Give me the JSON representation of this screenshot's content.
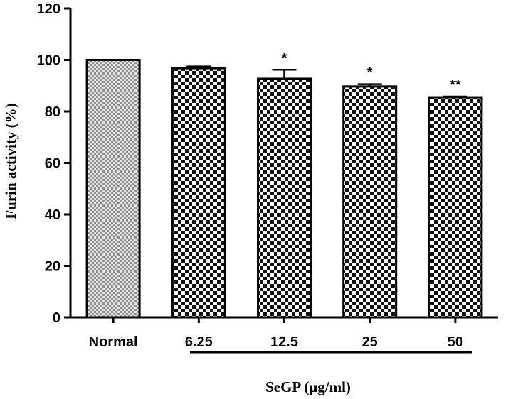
{
  "chart_data": {
    "type": "bar",
    "categories": [
      "Normal",
      "6.25",
      "12.5",
      "25",
      "50"
    ],
    "values": [
      100,
      96.8,
      92.7,
      89.7,
      85.5
    ],
    "error_plus": [
      0,
      0.7,
      3.5,
      0.9,
      0.3
    ],
    "significance": [
      "",
      "",
      "*",
      "*",
      "**"
    ],
    "ylabel": "Furin activity (%)",
    "xlabel": "SeGP (μg/ml)",
    "yticks": [
      0,
      20,
      40,
      60,
      80,
      100,
      120
    ],
    "ylim": [
      0,
      120
    ],
    "bar_patterns": [
      "fine-checker-gray",
      "checker",
      "checker",
      "checker",
      "checker"
    ],
    "group_bracket": {
      "from": "6.25",
      "to": "50"
    }
  }
}
